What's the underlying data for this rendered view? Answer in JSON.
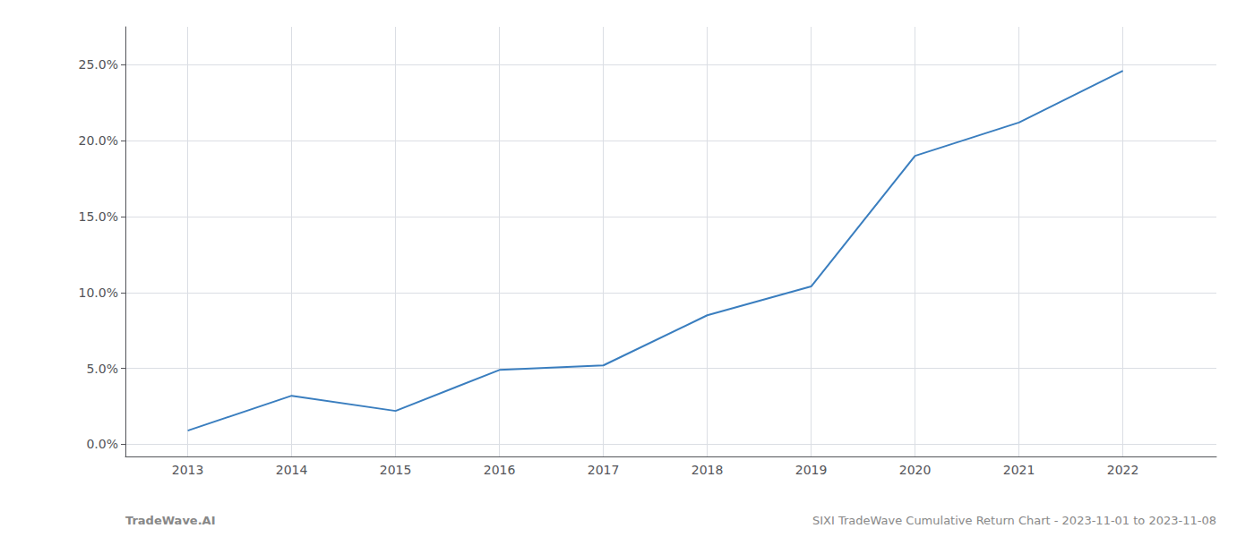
{
  "chart_data": {
    "type": "line",
    "x": [
      2013,
      2014,
      2015,
      2016,
      2017,
      2018,
      2019,
      2020,
      2021,
      2022
    ],
    "values": [
      0.009,
      0.032,
      0.022,
      0.049,
      0.052,
      0.085,
      0.104,
      0.19,
      0.212,
      0.246
    ],
    "color": "#3a7ebf",
    "xlim": [
      2012.4,
      2022.9
    ],
    "xticks": [
      2013,
      2014,
      2015,
      2016,
      2017,
      2018,
      2019,
      2020,
      2021,
      2022
    ],
    "ylim": [
      -0.008,
      0.275
    ],
    "yticks": [
      {
        "value": 0.0,
        "label": "0.0%"
      },
      {
        "value": 0.05,
        "label": "5.0%"
      },
      {
        "value": 0.1,
        "label": "10.0%"
      },
      {
        "value": 0.15,
        "label": "15.0%"
      },
      {
        "value": 0.2,
        "label": "20.0%"
      },
      {
        "value": 0.25,
        "label": "25.0%"
      }
    ],
    "grid": true,
    "annotations": [
      "TradeWave.AI",
      "SIXI TradeWave Cumulative Return Chart - 2023-11-01 to 2023-11-08"
    ]
  }
}
